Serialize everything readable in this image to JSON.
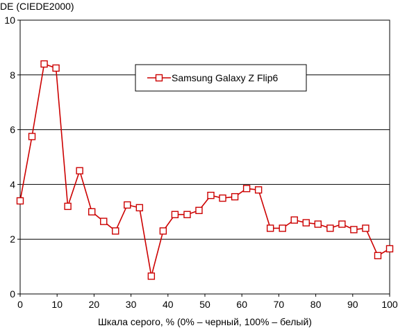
{
  "chart_data": {
    "type": "line",
    "title": "",
    "ylabel": "DE (CIEDE2000)",
    "xlabel": "Шкала серого, % (0% – черный, 100% – белый)",
    "xlim": [
      0,
      100
    ],
    "ylim": [
      0,
      10
    ],
    "x_ticks": [
      "0",
      "10",
      "20",
      "30",
      "40",
      "50",
      "60",
      "70",
      "80",
      "90",
      "100"
    ],
    "y_ticks": [
      "0",
      "2",
      "4",
      "6",
      "8",
      "10"
    ],
    "grid": "horizontal",
    "legend_position": "top-center",
    "series": [
      {
        "name": "Samsung Galaxy Z Flip6",
        "color": "#cc0000",
        "marker": "square-open",
        "x": [
          0,
          3.2,
          6.5,
          9.7,
          12.9,
          16.1,
          19.4,
          22.6,
          25.8,
          29.0,
          32.3,
          35.5,
          38.7,
          41.9,
          45.2,
          48.4,
          51.6,
          54.8,
          58.1,
          61.3,
          64.5,
          67.7,
          71.0,
          74.2,
          77.4,
          80.6,
          83.9,
          87.1,
          90.3,
          93.5,
          96.8,
          100
        ],
        "y": [
          3.4,
          5.75,
          8.4,
          8.25,
          3.2,
          4.5,
          3.0,
          2.65,
          2.3,
          3.25,
          3.15,
          0.65,
          2.3,
          2.9,
          2.9,
          3.05,
          3.6,
          3.5,
          3.55,
          3.85,
          3.8,
          2.4,
          2.4,
          2.7,
          2.6,
          2.55,
          2.4,
          2.55,
          2.35,
          2.4,
          1.4,
          1.65
        ]
      }
    ]
  }
}
